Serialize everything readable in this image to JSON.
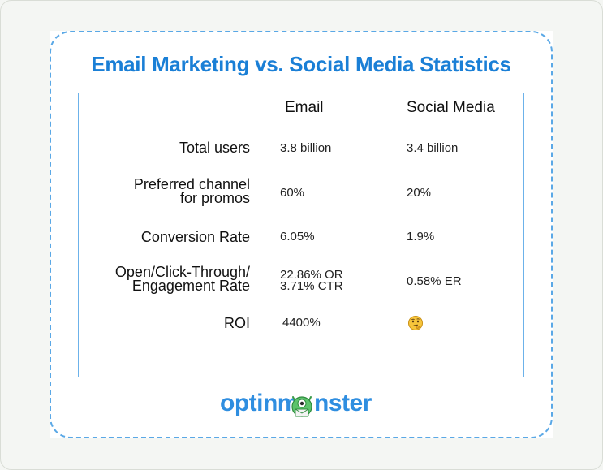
{
  "title": "Email Marketing vs. Social Media Statistics",
  "columns": {
    "email": "Email",
    "social": "Social Media"
  },
  "rows": [
    {
      "label_line1": "Total users",
      "label_line2": "",
      "email_line1": "3.8 billion",
      "email_line2": "",
      "social": "3.4 billion"
    },
    {
      "label_line1": "Preferred channel",
      "label_line2": "for promos",
      "email_line1": "60%",
      "email_line2": "",
      "social": "20%"
    },
    {
      "label_line1": "Conversion Rate",
      "label_line2": "",
      "email_line1": "6.05%",
      "email_line2": "",
      "social": "1.9%"
    },
    {
      "label_line1": "Open/Click-Through/",
      "label_line2": "Engagement Rate",
      "email_line1": "22.86% OR",
      "email_line2": "3.71% CTR",
      "social": "0.58% ER"
    },
    {
      "label_line1": "ROI",
      "label_line2": "",
      "email_line1": "4400%",
      "email_line2": "",
      "social_icon": "thinking-face-emoji"
    }
  ],
  "logo": {
    "part1": "optinm",
    "part2": "nster",
    "mascot_icon": "optinmonster-mascot-icon"
  },
  "colors": {
    "title": "#1a7fd6",
    "border": "#5aa8e6",
    "logo": "#2f8ee0",
    "mascot": "#5cc36b"
  }
}
